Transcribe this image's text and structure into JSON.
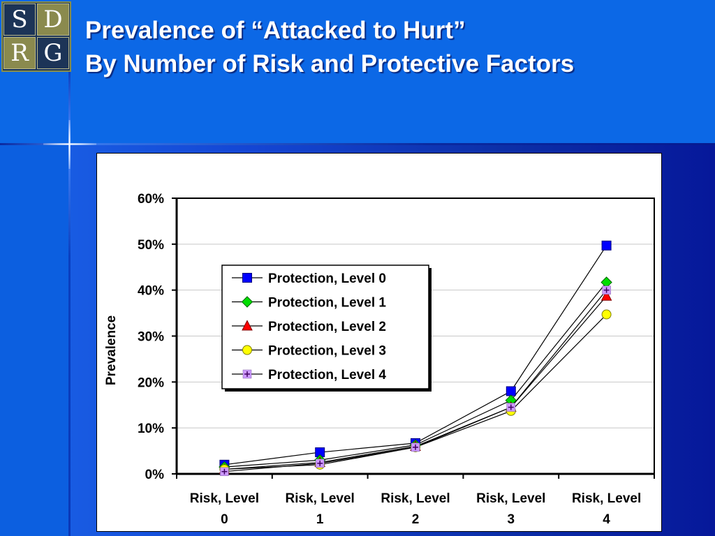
{
  "title": {
    "line1": "Prevalence of “Attacked to Hurt”",
    "line2": "By Number of Risk and Protective Factors"
  },
  "logo": {
    "letters": [
      "S",
      "D",
      "R",
      "G"
    ]
  },
  "colors": {
    "series": [
      "#0000ff",
      "#00dd00",
      "#ff0000",
      "#ffff00",
      "#cc99ff"
    ],
    "series_stroke": [
      "#000080",
      "#006600",
      "#800000",
      "#808000",
      "#8060a0"
    ]
  },
  "chart_data": {
    "type": "line",
    "ylabel": "Prevalence",
    "xlabel": "",
    "ylim": [
      0,
      0.6
    ],
    "y_ticks": [
      "0%",
      "10%",
      "20%",
      "30%",
      "40%",
      "50%",
      "60%"
    ],
    "categories": [
      [
        "Risk, Level",
        "0"
      ],
      [
        "Risk, Level",
        "1"
      ],
      [
        "Risk, Level",
        "2"
      ],
      [
        "Risk, Level",
        "3"
      ],
      [
        "Risk, Level",
        "4"
      ]
    ],
    "grid": true,
    "legend_position": "center-left",
    "series": [
      {
        "name": "Protection, Level 0",
        "marker": "square",
        "values": [
          0.02,
          0.047,
          0.067,
          0.18,
          0.497
        ]
      },
      {
        "name": "Protection, Level 1",
        "marker": "diamond",
        "values": [
          0.015,
          0.03,
          0.063,
          0.16,
          0.417
        ]
      },
      {
        "name": "Protection, Level 2",
        "marker": "triangle",
        "values": [
          0.01,
          0.025,
          0.06,
          0.145,
          0.387
        ]
      },
      {
        "name": "Protection, Level 3",
        "marker": "circle",
        "values": [
          0.01,
          0.02,
          0.058,
          0.137,
          0.347
        ]
      },
      {
        "name": "Protection, Level 4",
        "marker": "plus",
        "values": [
          0.005,
          0.023,
          0.058,
          0.145,
          0.4
        ]
      }
    ]
  }
}
